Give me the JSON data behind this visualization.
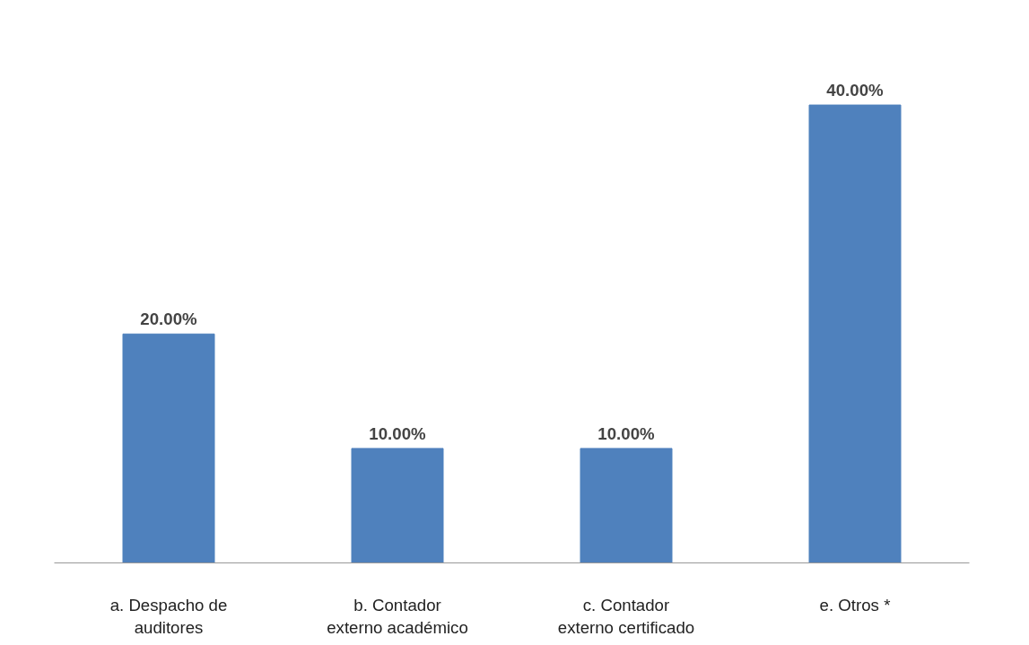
{
  "chart_data": {
    "type": "bar",
    "categories": [
      "a. Despacho de auditores",
      "b. Contador externo académico",
      "c. Contador externo certificado",
      "e. Otros *"
    ],
    "values": [
      20,
      10,
      10,
      40
    ],
    "value_labels": [
      "20.00%",
      "10.00%",
      "10.00%",
      "40.00%"
    ],
    "color": "#4f81bd",
    "grid": false
  }
}
